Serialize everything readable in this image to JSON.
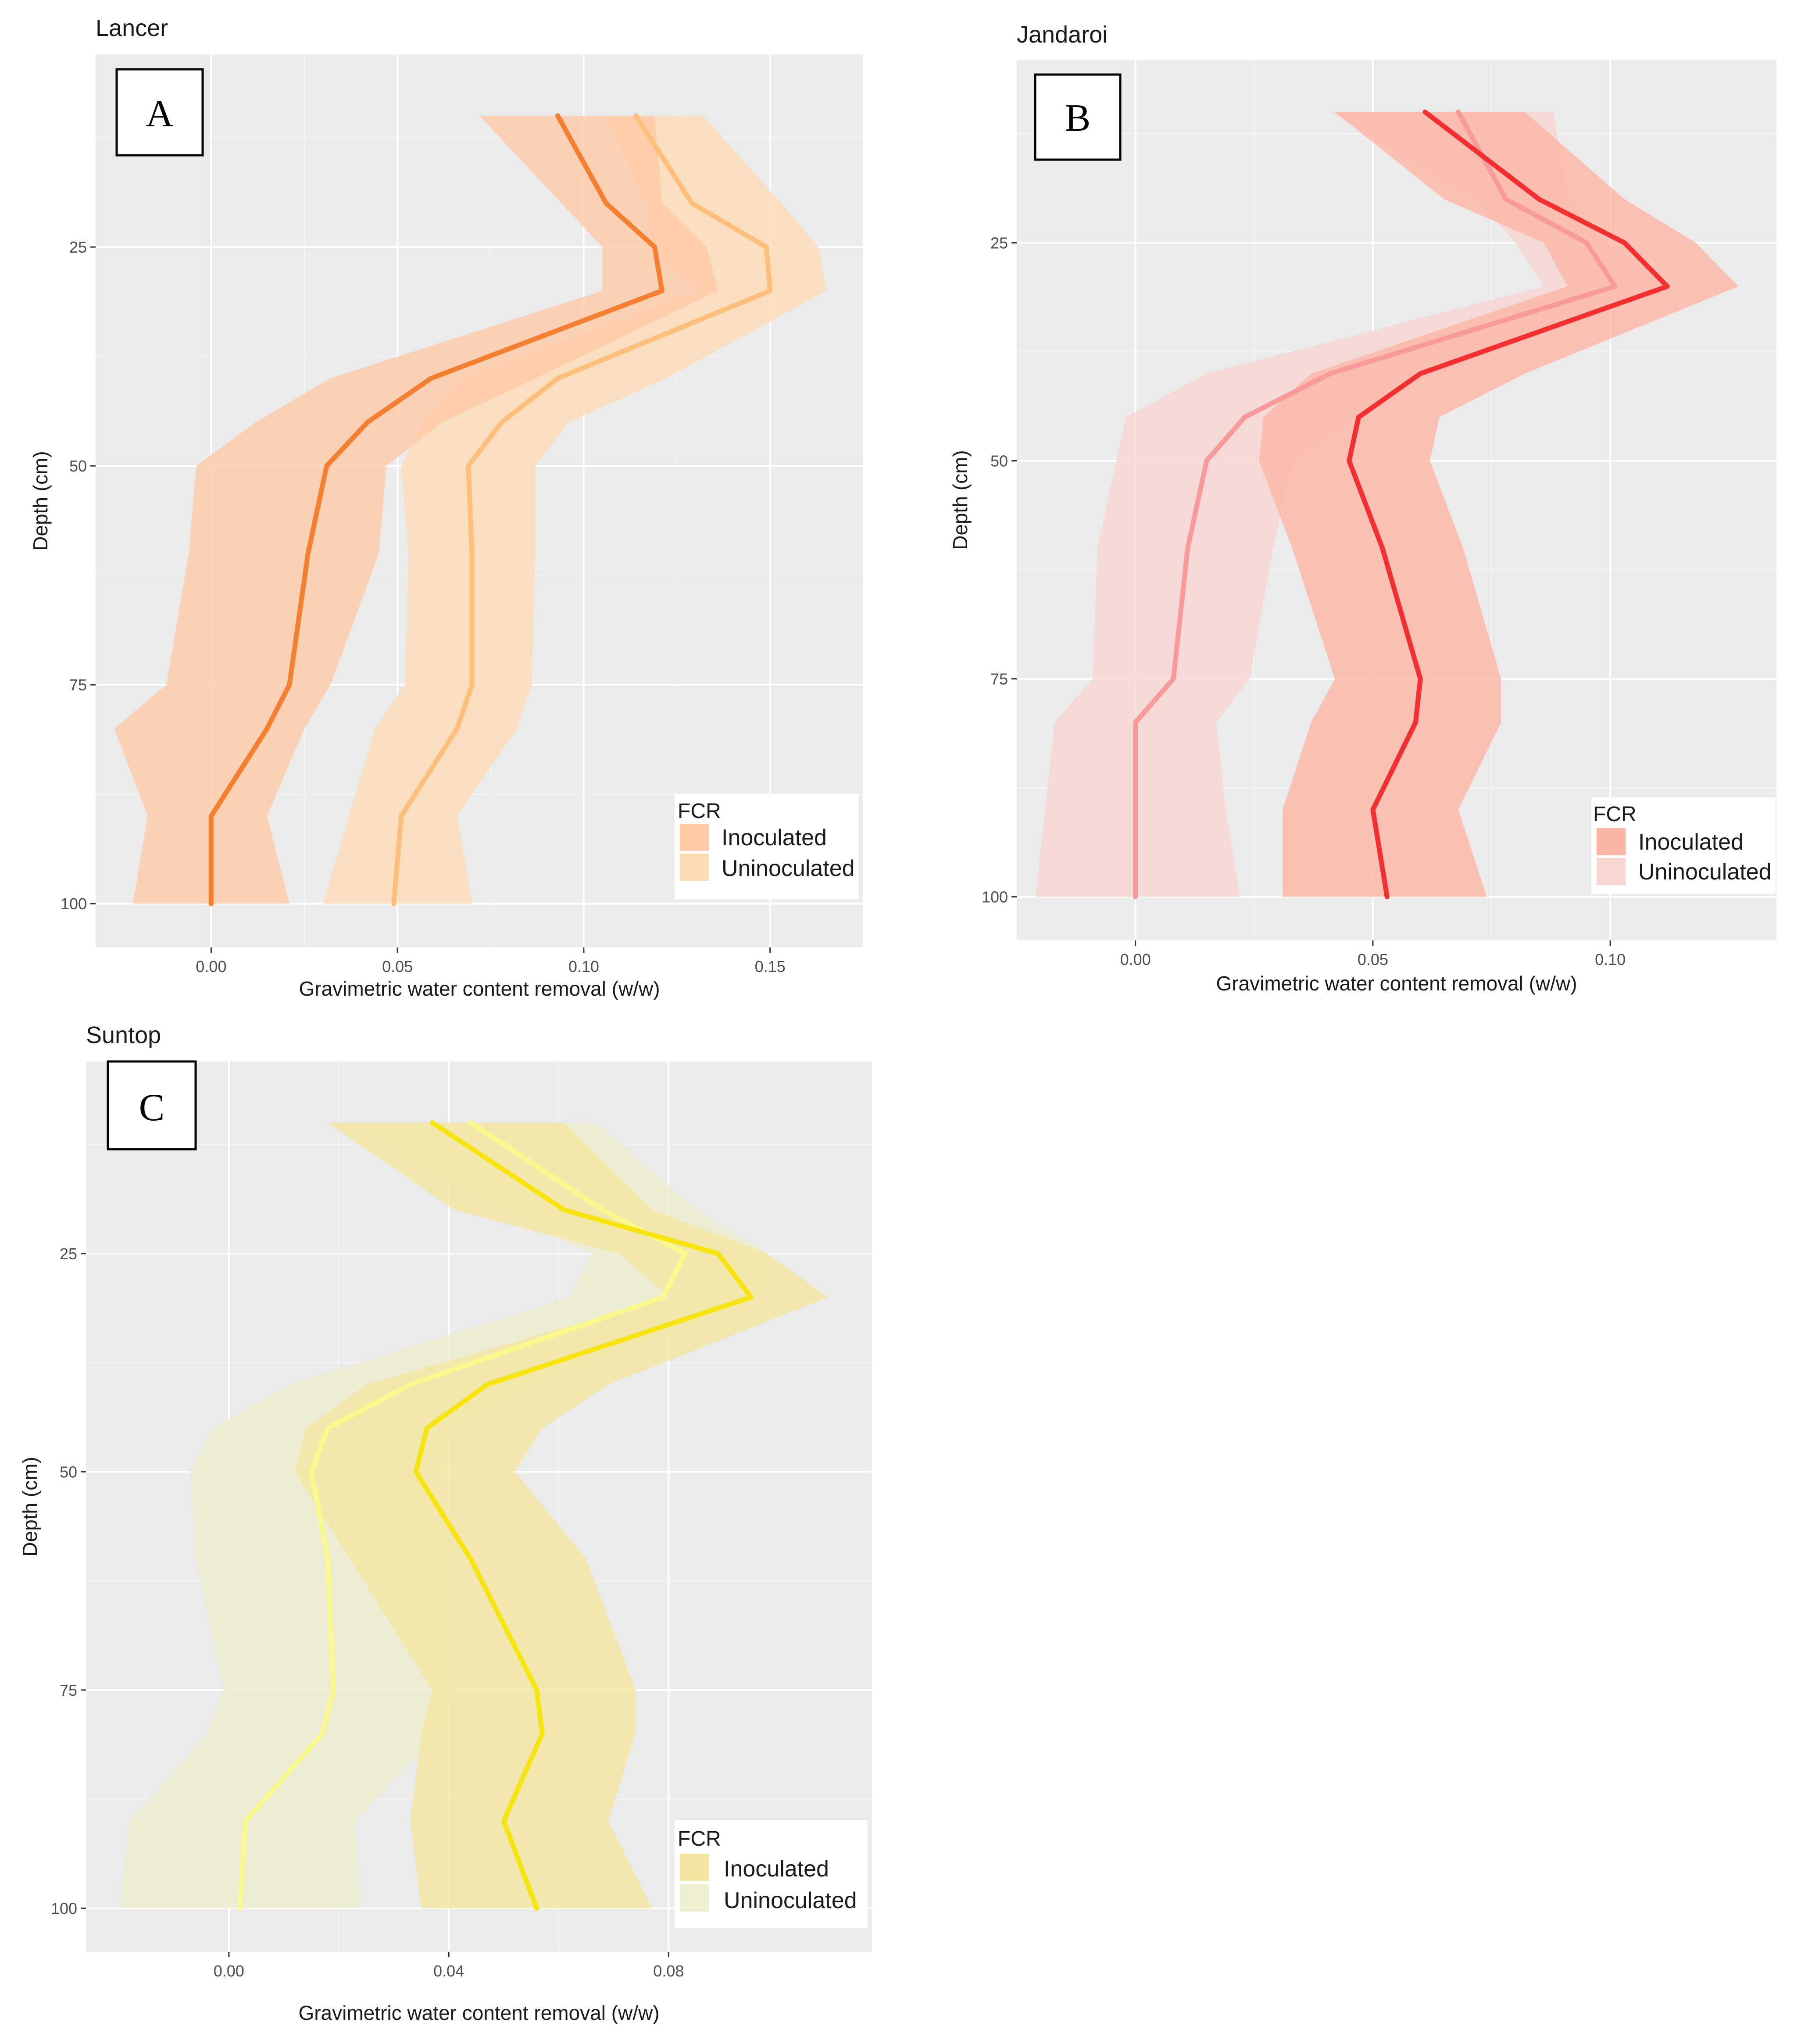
{
  "chart_data": [
    {
      "panel": "A",
      "type": "line",
      "title": "Lancer",
      "xlabel": "Gravimetric water content removal (w/w)",
      "ylabel": "Depth (cm)",
      "xlim": [
        -0.031,
        0.175
      ],
      "ylim": [
        3,
        105
      ],
      "xticks": [
        0.0,
        0.05,
        0.1,
        0.15
      ],
      "xtick_labels": [
        "0.00",
        "0.05",
        "0.10",
        "0.15"
      ],
      "yticks": [
        25,
        50,
        75,
        100
      ],
      "ytick_labels": [
        "25",
        "50",
        "75",
        "100"
      ],
      "legend": {
        "title": "FCR",
        "position": "bottom-right",
        "entries": [
          "Inoculated",
          "Uninoculated"
        ]
      },
      "series": [
        {
          "name": "Inoculated",
          "color": "#f57f2e",
          "fill": "#ffc9a6",
          "depth": [
            10,
            20,
            25,
            30,
            40,
            45,
            50,
            60,
            75,
            80,
            90,
            100
          ],
          "mean": [
            0.093,
            0.106,
            0.119,
            0.121,
            0.059,
            0.042,
            0.031,
            0.026,
            0.021,
            0.015,
            0.0,
            0.0
          ],
          "lower": [
            0.072,
            0.094,
            0.105,
            0.105,
            0.032,
            0.012,
            -0.004,
            -0.006,
            -0.012,
            -0.026,
            -0.017,
            -0.021
          ],
          "upper": [
            0.119,
            0.121,
            0.133,
            0.136,
            0.087,
            0.062,
            0.047,
            0.045,
            0.032,
            0.025,
            0.015,
            0.021
          ]
        },
        {
          "name": "Uninoculated",
          "color": "#ffbe7a",
          "fill": "#fddcb4",
          "depth": [
            10,
            20,
            25,
            30,
            40,
            45,
            50,
            60,
            75,
            80,
            90,
            100
          ],
          "mean": [
            0.114,
            0.129,
            0.149,
            0.15,
            0.093,
            0.078,
            0.069,
            0.07,
            0.07,
            0.066,
            0.051,
            0.049
          ],
          "lower": [
            0.106,
            0.117,
            0.118,
            0.131,
            0.067,
            0.057,
            0.051,
            0.053,
            0.052,
            0.044,
            0.037,
            0.03
          ],
          "upper": [
            0.132,
            0.153,
            0.163,
            0.165,
            0.122,
            0.096,
            0.087,
            0.087,
            0.086,
            0.082,
            0.066,
            0.07
          ]
        }
      ]
    },
    {
      "panel": "B",
      "type": "line",
      "title": "Jandaroi",
      "xlabel": "Gravimetric water content removal (w/w)",
      "ylabel": "Depth (cm)",
      "xlim": [
        -0.025,
        0.135
      ],
      "ylim": [
        4,
        105
      ],
      "xticks": [
        0.0,
        0.05,
        0.1
      ],
      "xtick_labels": [
        "0.00",
        "0.05",
        "0.10"
      ],
      "yticks": [
        25,
        50,
        75,
        100
      ],
      "ytick_labels": [
        "25",
        "50",
        "75",
        "100"
      ],
      "legend": {
        "title": "FCR",
        "position": "bottom-right",
        "entries": [
          "Inoculated",
          "Uninoculated"
        ]
      },
      "series": [
        {
          "name": "Inoculated",
          "color": "#f52f2f",
          "fill": "#fcb5a5",
          "depth": [
            10,
            20,
            25,
            30,
            40,
            45,
            50,
            60,
            75,
            80,
            90,
            100
          ],
          "mean": [
            0.061,
            0.085,
            0.103,
            0.112,
            0.06,
            0.047,
            0.045,
            0.052,
            0.06,
            0.059,
            0.05,
            0.053
          ],
          "lower": [
            0.042,
            0.065,
            0.086,
            0.091,
            0.037,
            0.027,
            0.026,
            0.033,
            0.042,
            0.037,
            0.031,
            0.031
          ],
          "upper": [
            0.082,
            0.103,
            0.118,
            0.127,
            0.082,
            0.064,
            0.062,
            0.069,
            0.077,
            0.077,
            0.068,
            0.074
          ]
        },
        {
          "name": "Uninoculated",
          "color": "#f99a9a",
          "fill": "#f8d5d1",
          "depth": [
            10,
            20,
            25,
            30,
            40,
            45,
            50,
            60,
            75,
            80,
            90,
            100
          ],
          "mean": [
            0.068,
            0.078,
            0.095,
            0.101,
            0.041,
            0.023,
            0.015,
            0.011,
            0.008,
            0.0,
            0.0,
            0.0
          ],
          "lower": [
            0.041,
            0.072,
            0.08,
            0.086,
            0.015,
            -0.002,
            -0.004,
            -0.008,
            -0.009,
            -0.017,
            -0.019,
            -0.021
          ],
          "upper": [
            0.088,
            0.091,
            0.099,
            0.112,
            0.063,
            0.046,
            0.033,
            0.029,
            0.024,
            0.017,
            0.019,
            0.022
          ]
        }
      ]
    },
    {
      "panel": "C",
      "type": "line",
      "title": "Suntop",
      "xlabel": "Gravimetric water content removal (w/w)",
      "ylabel": "Depth (cm)",
      "xlim": [
        -0.026,
        0.117
      ],
      "ylim": [
        3,
        105
      ],
      "xticks": [
        0.0,
        0.04,
        0.08
      ],
      "xtick_labels": [
        "0.00",
        "0.04",
        "0.08"
      ],
      "yticks": [
        25,
        50,
        75,
        100
      ],
      "ytick_labels": [
        "25",
        "50",
        "75",
        "100"
      ],
      "legend": {
        "title": "FCR",
        "position": "bottom-right",
        "entries": [
          "Inoculated",
          "Uninoculated"
        ]
      },
      "series": [
        {
          "name": "Inoculated",
          "color": "#f7e30d",
          "fill": "#f2e6a0",
          "depth": [
            10,
            20,
            25,
            30,
            40,
            45,
            50,
            60,
            75,
            80,
            90,
            100
          ],
          "mean": [
            0.037,
            0.061,
            0.089,
            0.095,
            0.047,
            0.036,
            0.034,
            0.044,
            0.056,
            0.057,
            0.05,
            0.056
          ],
          "lower": [
            0.018,
            0.041,
            0.071,
            0.08,
            0.025,
            0.014,
            0.012,
            0.022,
            0.037,
            0.035,
            0.033,
            0.035
          ],
          "upper": [
            0.061,
            0.077,
            0.098,
            0.109,
            0.069,
            0.057,
            0.052,
            0.065,
            0.074,
            0.074,
            0.069,
            0.077
          ]
        },
        {
          "name": "Uninoculated",
          "color": "#fafa8c",
          "fill": "#eeeed0",
          "depth": [
            10,
            20,
            25,
            30,
            40,
            45,
            50,
            60,
            75,
            80,
            90,
            100
          ],
          "mean": [
            0.044,
            0.068,
            0.083,
            0.079,
            0.033,
            0.018,
            0.015,
            0.018,
            0.019,
            0.017,
            0.003,
            0.002
          ],
          "lower": [
            0.021,
            0.049,
            0.066,
            0.062,
            0.011,
            -0.003,
            -0.007,
            -0.006,
            -0.001,
            -0.004,
            -0.018,
            -0.02
          ],
          "upper": [
            0.067,
            0.085,
            0.098,
            0.097,
            0.055,
            0.041,
            0.038,
            0.041,
            0.041,
            0.038,
            0.023,
            0.024
          ]
        }
      ]
    }
  ]
}
